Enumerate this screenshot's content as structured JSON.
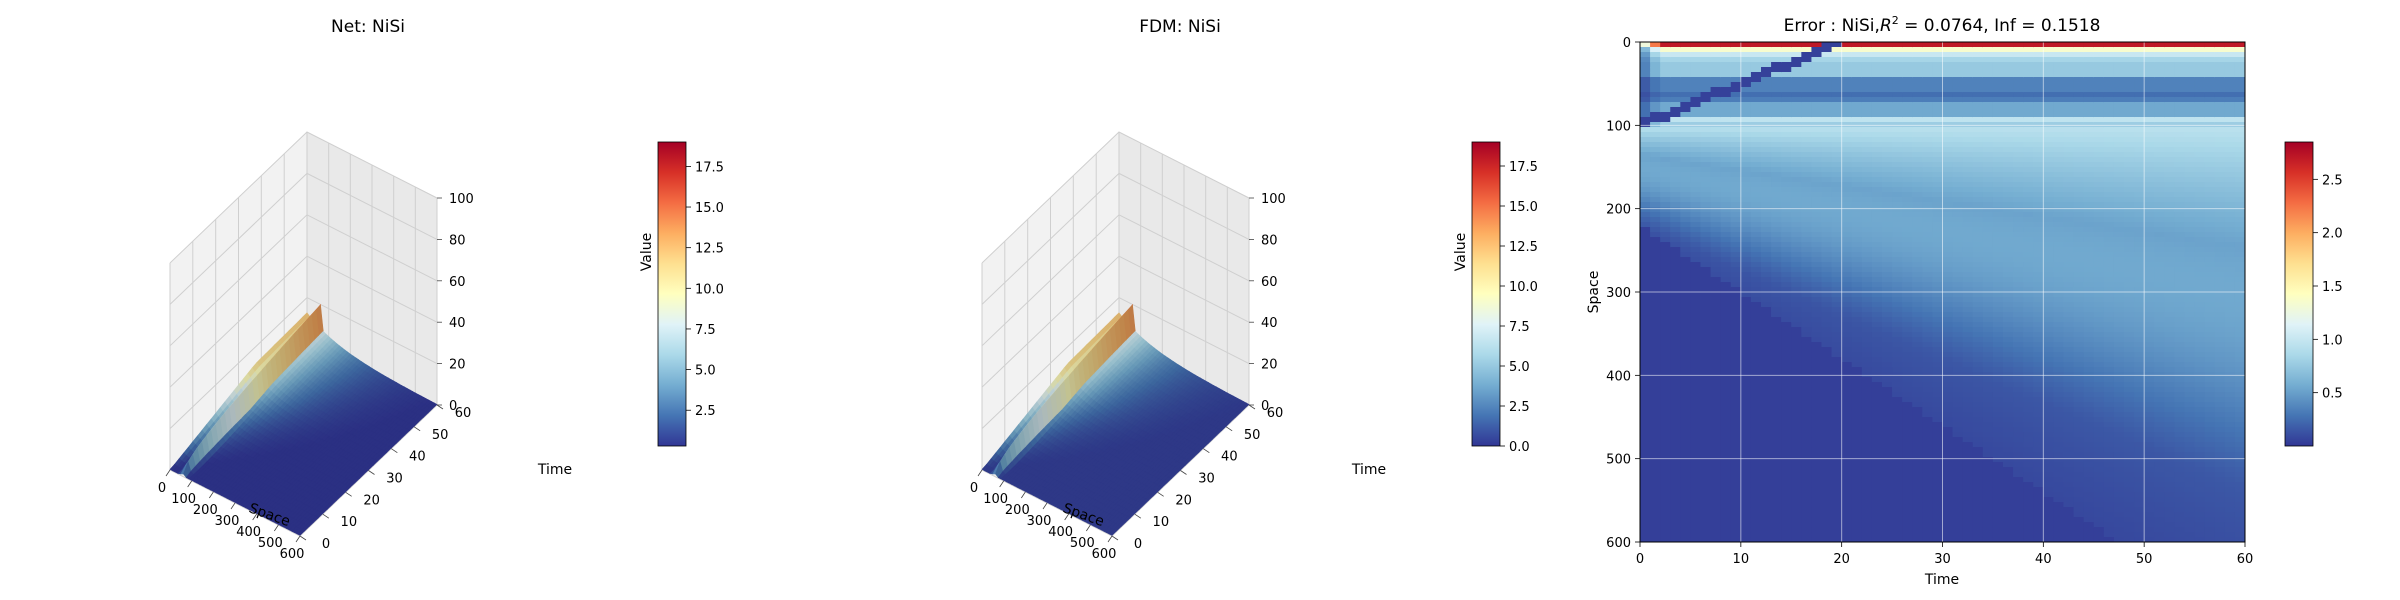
{
  "colormap": [
    "#313695",
    "#4575b4",
    "#74add1",
    "#abd9e9",
    "#e0f3f8",
    "#ffffbf",
    "#fee090",
    "#fdae61",
    "#f46d43",
    "#d73027",
    "#a50026"
  ],
  "chart_data": [
    {
      "type": "surface3d",
      "title": "Net: NiSi",
      "xlabel": "Space",
      "ylabel": "Time",
      "zlabel": "Value",
      "xlim": [
        0,
        600
      ],
      "ylim": [
        0,
        60
      ],
      "zlim": [
        0,
        100
      ],
      "xticks": [
        "0",
        "100",
        "200",
        "300",
        "400",
        "500",
        "600"
      ],
      "yticks": [
        "0",
        "10",
        "20",
        "30",
        "40",
        "50",
        "60"
      ],
      "zticks": [
        "0",
        "20",
        "40",
        "60",
        "80",
        "100"
      ],
      "peak_value": 19,
      "colorbar": {
        "range": [
          0.3,
          19
        ],
        "ticks": [
          "2.5",
          "5.0",
          "7.5",
          "10.0",
          "12.5",
          "15.0",
          "17.5"
        ]
      }
    },
    {
      "type": "surface3d",
      "title": "FDM: NiSi",
      "xlabel": "Space",
      "ylabel": "Time",
      "zlabel": "Value",
      "xlim": [
        0,
        600
      ],
      "ylim": [
        0,
        60
      ],
      "zlim": [
        0,
        100
      ],
      "xticks": [
        "0",
        "100",
        "200",
        "300",
        "400",
        "500",
        "600"
      ],
      "yticks": [
        "0",
        "10",
        "20",
        "30",
        "40",
        "50",
        "60"
      ],
      "zticks": [
        "0",
        "20",
        "40",
        "60",
        "80",
        "100"
      ],
      "peak_value": 19,
      "colorbar": {
        "range": [
          0,
          19
        ],
        "ticks": [
          "0.0",
          "2.5",
          "5.0",
          "7.5",
          "10.0",
          "12.5",
          "15.0",
          "17.5"
        ]
      }
    },
    {
      "type": "heatmap",
      "title_prefix": "Error : NiSi,",
      "title_r": "R",
      "title_sup": "2",
      "title_suffix": " = 0.0764, Inf = 0.1518",
      "xlabel": "Time",
      "ylabel": "Space",
      "xlim": [
        0,
        60
      ],
      "ylim": [
        600,
        0
      ],
      "xticks": [
        "0",
        "10",
        "20",
        "30",
        "40",
        "50",
        "60"
      ],
      "yticks": [
        "0",
        "100",
        "200",
        "300",
        "400",
        "500",
        "600"
      ],
      "grid": true,
      "colorbar": {
        "range": [
          0,
          2.85
        ],
        "ticks": [
          "0.5",
          "1.0",
          "1.5",
          "2.0",
          "2.5"
        ]
      }
    }
  ]
}
